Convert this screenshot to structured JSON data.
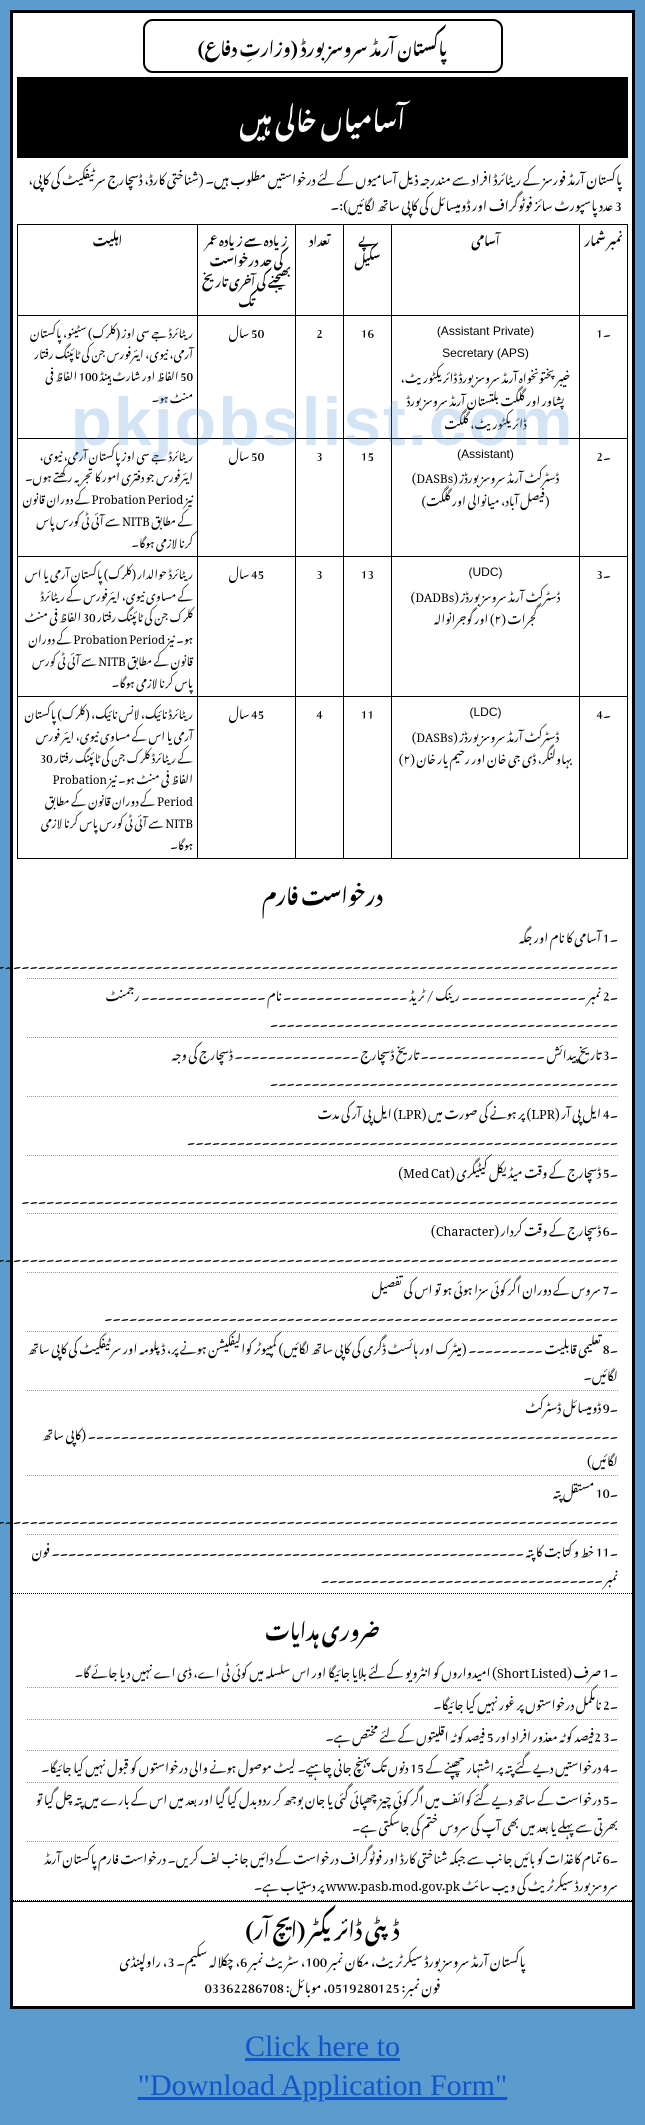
{
  "colors": {
    "page_bg": "#5b9bcd",
    "doc_bg": "#ffffff",
    "border": "#000000",
    "band_bg": "#000000",
    "band_fg": "#ffffff",
    "link": "#1155cc",
    "watermark": "rgba(80,150,210,0.25)"
  },
  "header": {
    "org": "پاکستان آرمڈ سروسز بورڈ (وزارتِ دفاع)",
    "title": "آسامیاں خالی ہیں"
  },
  "intro": "پاکستان آرمڈ فورسز کے ریٹائرڈ افراد سے مندرجہ ذیل آسامیوں کے لئے درخواستیں مطلوب ہیں۔ (شناختی کارڈ، ڈسچارج سرٹیفکیٹ کی کاپی، 3 عدد پاسپورٹ سائز فوٹوگراف اور ڈومیسائل کی کاپی ساتھ لگائیں):۔",
  "table": {
    "col_widths": [
      "48px",
      "190px",
      "48px",
      "48px",
      "100px",
      "auto"
    ],
    "headers": [
      "نمبر شمار",
      "آسامی",
      "پے سکیل",
      "تعداد",
      "زیادہ سے زیادہ عمر کی حد درخواست بھیجنے کی آخری تاریخ تک",
      "اہلیت"
    ],
    "rows": [
      {
        "sr": "۔1",
        "position_en": "(Assistant Private)\nSecretary (APS)",
        "position_ur": "خیبر پختونخواہ آرمڈ سروسز بورڈ ڈائریکٹوریٹ، پشاور اور گلگت بلتستان آرمڈ سروسز بورڈ ڈائریکٹوریٹ، گلگت",
        "scale": "16",
        "count": "2",
        "age": "50 سال",
        "eligibility": "ریٹائرڈ جے سی اوز (کلرک) سٹینو، پاکستان آرمی، نیوی، ایئرفورس جن کی ٹائپنگ رفتار 50 الفاظ اور شارٹ ہینڈ 100 الفاظ فی منٹ ہو۔"
      },
      {
        "sr": "۔2",
        "position_en": "(Assistant)",
        "position_ur": "ڈسٹرکٹ آرمڈ سروسز بورڈز (DASBs)\n(فیصل آباد، میانوالی اور گلگت)",
        "scale": "15",
        "count": "3",
        "age": "50 سال",
        "eligibility": "ریٹائرڈ جے سی اوز پاکستان آرمی، نیوی، ایئرفورس جو دفتری امور کا تجربہ رکھتے ہوں۔ نیز Probation Period کے دوران قانون کے مطابق NITB سے آئی ٹی کورس پاس کرنا لازمی ہوگا۔"
      },
      {
        "sr": "۔3",
        "position_en": "(UDC)",
        "position_ur": "ڈسٹرکٹ آرمڈ سروسز بورڈز (DADBs)\nگجرات (۲) اور گوجرانوالہ",
        "scale": "13",
        "count": "3",
        "age": "45 سال",
        "eligibility": "ریٹائرڈ حوالدار (کلرک) پاکستان آرمی یا اس کے مساوی نیوی، ایئرفورس کے ریٹائرڈ کلرک جن کی ٹائپنگ رفتار 30 الفاظ فی منٹ ہو۔ نیز Probation Period کے دوران قانون کے مطابق NITB سے آئی ٹی کورس پاس کرنا لازمی ہوگا۔"
      },
      {
        "sr": "۔4",
        "position_en": "(LDC)",
        "position_ur": "ڈسٹرکٹ آرمڈ سروسز بورڈز (DASBs)\nبہاولنگر، ڈی جی خان اور رحیم یار خان (۲)",
        "scale": "11",
        "count": "4",
        "age": "45 سال",
        "eligibility": "ریٹائرڈ نائیک، لانس نائیک، (کلرک) پاکستان آرمی یا اس کے مساوی نیوی، ایئر فورس کے ریٹائرڈ کلرک جن کی ٹائپنگ رفتار 30 الفاظ فی منٹ ہو۔ نیز Probation Period کے دوران قانون کے مطابق NITB سے آئی ٹی کورس پاس کرنا لازمی ہوگا۔"
      }
    ]
  },
  "form": {
    "heading": "درخواست فارم",
    "items": [
      "۔1 آسامی کا نام اور جگہ ۔۔۔۔۔۔۔۔۔۔۔۔۔۔۔۔۔۔۔۔۔۔۔۔۔۔۔۔۔۔۔۔۔۔۔۔۔۔۔۔۔۔۔۔۔۔۔۔۔۔۔۔۔۔۔۔۔۔۔۔۔۔۔۔۔۔۔۔۔۔۔۔۔۔۔۔۔۔۔۔۔۔۔۔۔۔۔۔۔۔۔۔۔۔۔۔۔۔۔۔",
      "۔2 نمبر ۔۔۔۔۔۔۔۔۔۔۔۔۔۔۔ رینک / ٹریڈ ۔۔۔۔۔۔۔۔۔۔۔۔۔۔۔ نام ۔۔۔۔۔۔۔۔۔۔۔۔۔۔۔ رجمنٹ ۔۔۔۔۔۔۔۔۔۔۔۔۔۔۔۔۔۔۔۔۔۔۔۔۔۔۔۔۔۔۔۔۔۔۔۔۔۔۔۔۔۔",
      "۔3 تاریخ پیدائش ۔۔۔۔۔۔۔۔۔۔۔۔۔۔۔ تاریخ ڈسچارج ۔۔۔۔۔۔۔۔۔۔۔۔۔۔۔ ڈسچارج کی وجہ ۔۔۔۔۔۔۔۔۔۔۔۔۔۔۔۔۔۔۔۔۔۔۔۔۔۔۔۔۔۔۔۔۔۔۔۔۔۔۔۔۔۔",
      "۔4 ایل پی آر (LPR) پر ہونے کی صورت میں (LPR) ایل پی آر کی مدت ۔۔۔۔۔۔۔۔۔۔۔۔۔۔۔۔۔۔۔۔۔۔۔۔۔۔۔۔۔۔۔۔۔۔۔۔۔۔۔۔۔۔۔۔۔۔۔۔۔۔۔۔",
      "۔5 ڈسچارج کے وقت میڈیکل کیٹیگری (Med Cat) ۔۔۔۔۔۔۔۔۔۔۔۔۔۔۔۔۔۔۔۔۔۔۔۔۔۔۔۔۔۔۔۔۔۔۔۔۔۔۔۔۔۔۔۔۔۔۔۔۔۔۔۔۔۔۔۔۔۔۔۔۔۔۔۔۔۔۔۔۔۔۔۔",
      "۔6 ڈسچارج کے وقت کردار (Character) ۔۔۔۔۔۔۔۔۔۔۔۔۔۔۔۔۔۔۔۔۔۔۔۔۔۔۔۔۔۔۔۔۔۔۔۔۔۔۔۔۔۔۔۔۔۔۔۔۔۔۔۔۔۔۔۔۔۔۔۔۔۔۔۔۔۔۔۔۔۔۔۔۔۔۔۔۔۔۔۔۔",
      "۔7 سروس کے دوران اگر کوئی سزا ہوئی ہو تو اس کی تفصیل ۔۔۔۔۔۔۔۔۔۔۔۔۔۔۔۔۔۔۔۔۔۔۔۔۔۔۔۔۔۔۔۔۔۔۔۔۔۔۔۔۔۔۔۔۔۔۔۔۔۔۔۔۔۔۔۔۔۔۔۔۔۔",
      "۔8 تعلیمی قابلیت ۔۔۔۔۔۔۔۔۔ (میٹرک اور ہائسٹ ڈگری کی کاپی ساتھ لگائیں) کمپیوٹر کوالیفکیشن ہونے پر، ڈپلومہ اور سرٹیفکیٹ کی کاپی ساتھ لگائیں۔",
      "۔9 ڈومیسائل ڈسٹرکٹ ۔۔۔۔۔۔۔۔۔۔۔۔۔۔۔۔۔۔۔۔۔۔۔۔۔۔۔۔۔۔۔۔۔۔۔۔۔۔۔۔۔۔۔۔۔۔۔۔۔۔۔۔۔۔۔۔۔۔۔۔۔۔۔۔ (کاپی ساتھ لگائیں)",
      "۔10 مستقل پتہ ۔۔۔۔۔۔۔۔۔۔۔۔۔۔۔۔۔۔۔۔۔۔۔۔۔۔۔۔۔۔۔۔۔۔۔۔۔۔۔۔۔۔۔۔۔۔۔۔۔۔۔۔۔۔۔۔۔۔۔۔۔۔۔۔۔۔۔۔۔۔۔۔۔۔۔۔۔۔۔۔۔۔۔۔۔۔۔۔۔۔۔۔۔۔۔۔۔۔۔۔۔۔۔۔۔۔۔۔",
      "۔11 خط و کتابت کا پتہ ۔۔۔۔۔۔۔۔۔۔۔۔۔۔۔۔۔۔۔۔۔۔۔۔۔۔۔۔۔۔۔۔۔۔۔۔۔۔۔۔۔۔۔۔۔۔۔۔۔۔۔۔۔۔۔۔۔ فون نمبر ۔۔۔۔۔۔۔۔۔۔۔۔۔۔۔۔۔۔۔۔۔۔۔۔۔۔۔۔۔۔۔۔۔۔"
    ]
  },
  "instructions": {
    "heading": "ضروری ہدایات",
    "items": [
      "۔1 صرف (Short Listed) امیدواروں کو انٹرویو کے لئے بلایا جائیگا اور اس سلسلہ میں کوئی ٹی اے، ڈی اے نہیں دیا جائے گا۔",
      "۔2 نامکمل درخواستوں پر غور نہیں کیا جائیگا۔",
      "۔3 2فیصد کوٹہ معذور افراد اور 5 فیصد کوٹہ اقلیتوں کے لئے مختص ہے۔",
      "۔4 درخواستیں دیے گئے پتہ پر اشتہار چھپنے کے 15 دنوں تک پہنچ جانی چاہیے۔ لیٹ موصول ہونے والی درخواستوں کو قبول نہیں کیا جائیگا۔",
      "۔5 درخواست کے ساتھ دیے گئے کوائف میں اگر کوئی چیز چھپائی گئی یا جان بوجھ کر ردوبدل کیا گیا اور بعد میں اس کے بارے میں پتہ چل گیا تو بھرتی سے پہلے یا بعد میں بھی آپ کی سروس ختم کی جاسکتی ہے۔",
      "۔6 تمام کاغذات کو بائیں جانب سے جبکہ شناختی کارڈ اور فوٹوگراف درخواست کے دائیں جانب لف کریں۔ درخواست فارم پاکستان آرمڈ سروسز بورڈ سیکرٹریٹ کی ویب سائٹ www.pasb.mod.gov.pk پر دستیاب ہے۔"
    ]
  },
  "footer": {
    "title": "ڈپٹی ڈائریکٹر (ایچ آر)",
    "address": "پاکستان آرمڈ سروسز بورڈ سیکرٹریٹ، مکان نمبر 100، سٹریٹ نمبر 6، چکلالہ سکیم۔ 3، راولپنڈی",
    "contacts": "فون نمبر: 0519280125، موبائل: 03362286708"
  },
  "watermark": "pkjobslist.com",
  "download": {
    "line1": "Click here to",
    "line2": "\"Download Application Form\""
  }
}
